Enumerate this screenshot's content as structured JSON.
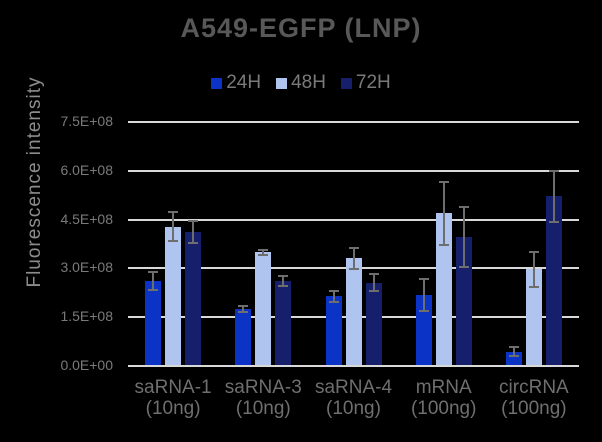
{
  "window": {
    "background": "#000000"
  },
  "chart_data": {
    "type": "bar",
    "title": "A549-EGFP (LNP)",
    "ylabel": "Fluorescence intensity",
    "xlabel": "",
    "ylim": [
      0,
      750000000
    ],
    "grid": true,
    "legend_position": "top",
    "error_bars": true,
    "ytick_values": [
      0,
      150000000,
      300000000,
      450000000,
      600000000,
      750000000
    ],
    "ytick_labels": [
      "0.0E+00",
      "1.5E+08",
      "3.0E+08",
      "4.5E+08",
      "6.0E+08",
      "7.5E+08"
    ],
    "categories": [
      {
        "name": "saRNA-1",
        "dose": "(10ng)"
      },
      {
        "name": "saRNA-3",
        "dose": "(10ng)"
      },
      {
        "name": "saRNA-4",
        "dose": "(10ng)"
      },
      {
        "name": "mRNA",
        "dose": "(100ng)"
      },
      {
        "name": "circRNA",
        "dose": "(100ng)"
      }
    ],
    "series": [
      {
        "name": "24H",
        "color": "#0b34c7",
        "values": [
          262000000,
          175000000,
          215000000,
          218000000,
          44000000
        ],
        "errors": [
          30000000,
          13000000,
          20000000,
          53000000,
          16000000
        ]
      },
      {
        "name": "48H",
        "color": "#b0c4f0",
        "values": [
          428000000,
          350000000,
          331000000,
          470000000,
          297000000
        ],
        "errors": [
          48000000,
          11000000,
          35000000,
          100000000,
          58000000
        ]
      },
      {
        "name": "72H",
        "color": "#161f6b",
        "values": [
          412000000,
          262000000,
          256000000,
          397000000,
          522000000
        ],
        "errors": [
          38000000,
          18000000,
          29000000,
          96000000,
          82000000
        ]
      }
    ],
    "colors": {
      "background": "#000000",
      "grid": "#d9d9d9",
      "error_bar": "#6e6e6e",
      "title_text": "#585858",
      "tick_text": "#7a7a7a",
      "category_text": "#6f6f6f",
      "ylabel_text": "#8c8c8c",
      "legend_text": "#7a7a7a"
    }
  }
}
